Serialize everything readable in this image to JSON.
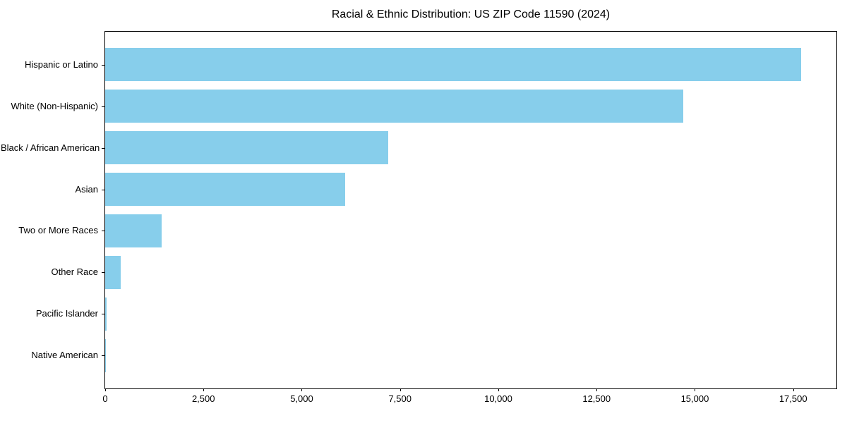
{
  "chart_data": {
    "type": "bar",
    "orientation": "horizontal",
    "title": "Racial & Ethnic Distribution: US ZIP Code 11590 (2024)",
    "categories": [
      "Hispanic or Latino",
      "White (Non-Hispanic)",
      "Black / African American",
      "Asian",
      "Two or More Races",
      "Other Race",
      "Pacific Islander",
      "Native American"
    ],
    "values": [
      17700,
      14700,
      7200,
      6100,
      1430,
      400,
      30,
      10
    ],
    "xlabel": "",
    "ylabel": "",
    "xlim": [
      0,
      18600
    ],
    "x_ticks": [
      0,
      2500,
      5000,
      7500,
      10000,
      12500,
      15000,
      17500
    ],
    "x_tick_labels": [
      "0",
      "2,500",
      "5,000",
      "7,500",
      "10,000",
      "12,500",
      "15,000",
      "17,500"
    ],
    "bar_color": "#87CEEB",
    "grid": false,
    "legend": null
  }
}
